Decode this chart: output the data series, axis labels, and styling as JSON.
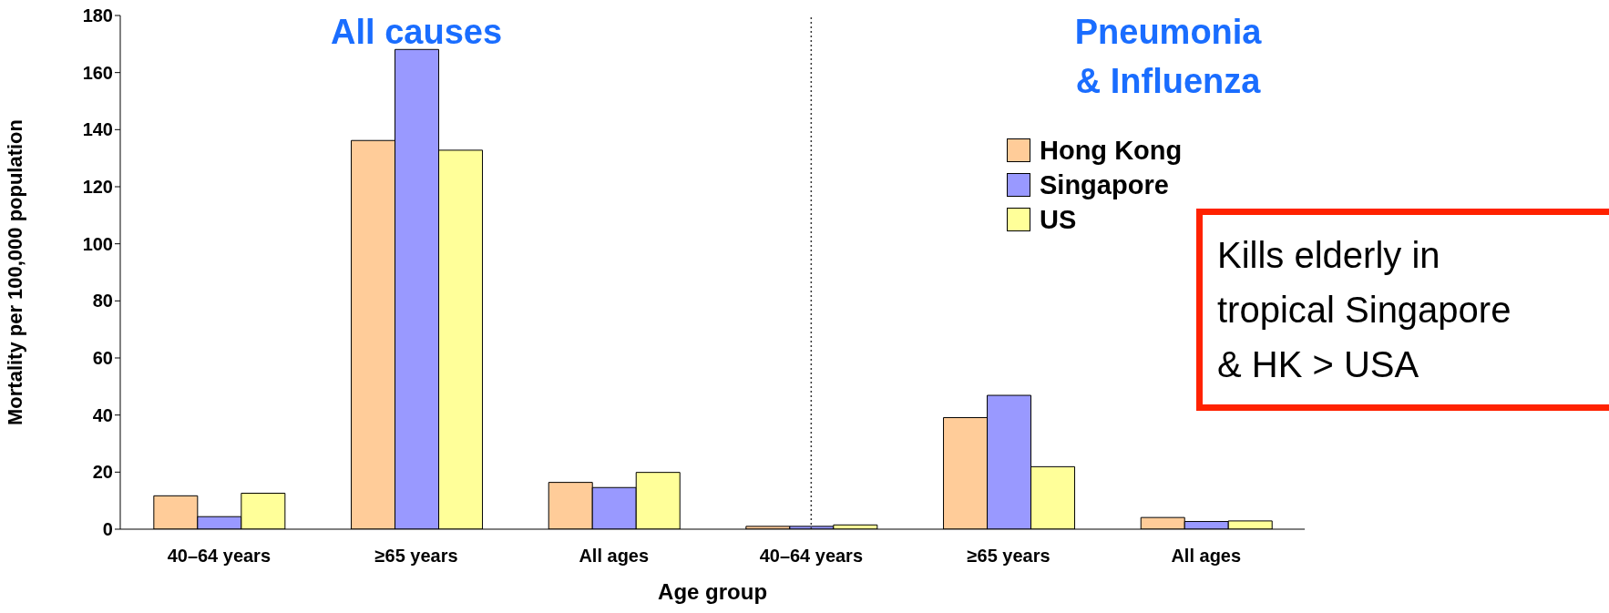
{
  "chart_data": [
    {
      "type": "bar",
      "title": "All causes",
      "xlabel": "Age group",
      "ylabel": "Mortality per 100,000 population",
      "categories": [
        "40–64 years",
        "≥65 years",
        "All ages"
      ],
      "series": [
        {
          "color": "#ffcc99",
          "values": [
            11.7,
            136.2,
            16.4
          ]
        },
        {
          "color": "#9999ff",
          "values": [
            4.4,
            168.1,
            14.6
          ]
        },
        {
          "color": "#ffff99",
          "values": [
            12.6,
            132.8,
            19.9
          ]
        }
      ],
      "ylim": [
        0,
        180
      ],
      "yticks": [
        0,
        20,
        40,
        60,
        80,
        100,
        120,
        140,
        160,
        180
      ],
      "grid": false
    },
    {
      "type": "bar",
      "title": "Pneumonia\n& Influenza",
      "categories": [
        "40–64 years",
        "≥65 years",
        "All ages"
      ],
      "series": [
        {
          "name": "Hong Kong",
          "color": "#ffcc99",
          "values": [
            1,
            39.1,
            4.1
          ]
        },
        {
          "name": "Singapore",
          "color": "#9999ff",
          "values": [
            1,
            46.9,
            2.7
          ]
        },
        {
          "name": "US",
          "color": "#ffff99",
          "values": [
            1.5,
            21.9,
            2.9
          ]
        }
      ],
      "ylim": [
        0,
        180
      ],
      "yticks": [
        0,
        20,
        40,
        60,
        80,
        100,
        120,
        140,
        160,
        180
      ],
      "tick_labels": "x",
      "grid": false,
      "legend": "top right",
      "ref_lines": [
        {
          "axis": "x",
          "value": "40–64 years",
          "line_style": "dotted",
          "color": "#333333"
        }
      ],
      "annotations": [
        "Kills elderly in\ntropical Singapore\n& HK > USA"
      ]
    }
  ]
}
